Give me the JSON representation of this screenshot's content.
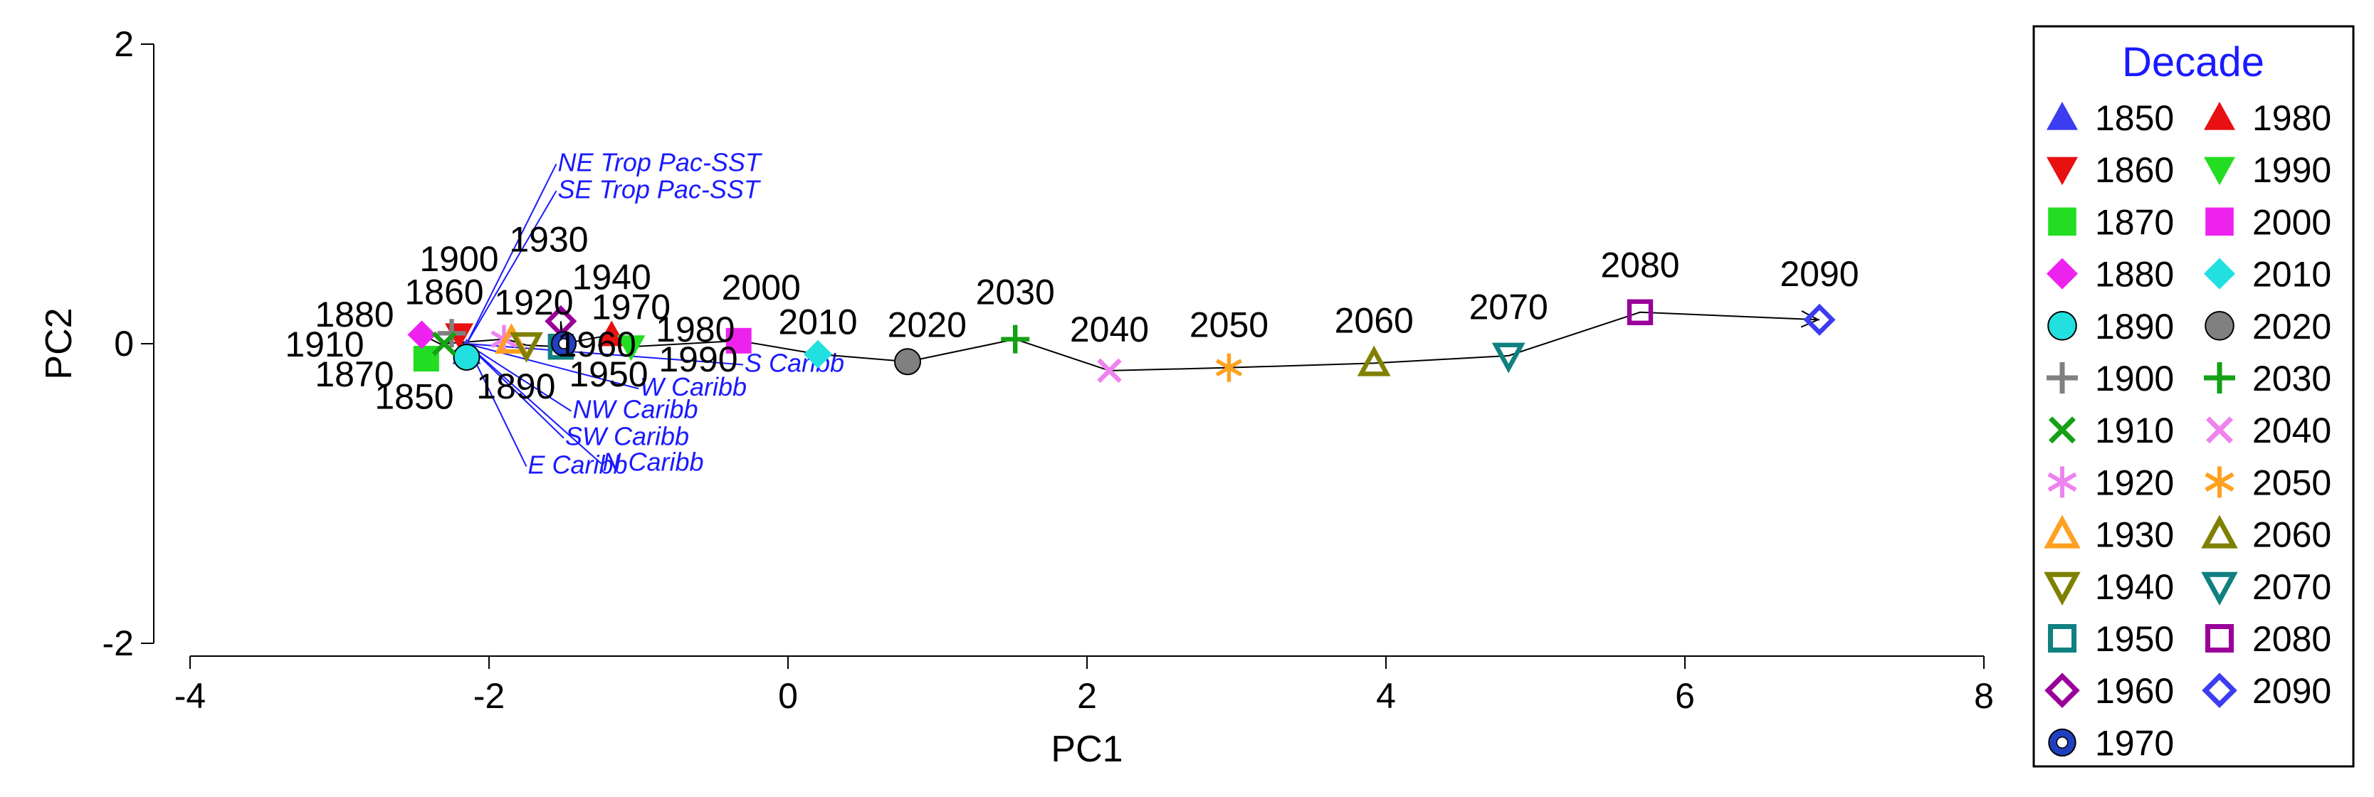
{
  "chart_data": {
    "type": "scatter",
    "title": "",
    "xlabel": "PC1",
    "ylabel": "PC2",
    "xlim": [
      -4,
      8
    ],
    "ylim": [
      -2,
      2
    ],
    "xticks": [
      "-4",
      "-2",
      "0",
      "2",
      "4",
      "6",
      "8"
    ],
    "yticks": [
      "-2",
      "0",
      "2"
    ],
    "grid": false,
    "legend_placement": "right",
    "legend_title": "Decade",
    "trajectory_order": [
      "1850",
      "1860",
      "1870",
      "1880",
      "1890",
      "1900",
      "1910",
      "1920",
      "1930",
      "1940",
      "1950",
      "1960",
      "1970",
      "1980",
      "1990",
      "2000",
      "2010",
      "2020",
      "2030",
      "2040",
      "2050",
      "2060",
      "2070",
      "2080",
      "2090"
    ],
    "series": [
      {
        "name": "1850",
        "x": -2.15,
        "y": -0.06,
        "marker": "triangle-up-filled",
        "color": "#3c3cf0"
      },
      {
        "name": "1860",
        "x": -2.2,
        "y": 0.06,
        "marker": "triangle-down-filled",
        "color": "#e81010"
      },
      {
        "name": "1870",
        "x": -2.42,
        "y": -0.1,
        "marker": "square-filled",
        "color": "#22dd22"
      },
      {
        "name": "1880",
        "x": -2.45,
        "y": 0.06,
        "marker": "diamond-filled",
        "color": "#ee22ee"
      },
      {
        "name": "1890",
        "x": -2.15,
        "y": -0.09,
        "marker": "circle-filled",
        "color": "#22e0e0"
      },
      {
        "name": "1900",
        "x": -2.25,
        "y": 0.07,
        "marker": "plus",
        "color": "#808080"
      },
      {
        "name": "1910",
        "x": -2.3,
        "y": 0.0,
        "marker": "cross",
        "color": "#16a016"
      },
      {
        "name": "1920",
        "x": -1.9,
        "y": 0.03,
        "marker": "asterisk",
        "color": "#ee82ee"
      },
      {
        "name": "1930",
        "x": -1.85,
        "y": 0.02,
        "marker": "triangle-up-open",
        "color": "#ffa020"
      },
      {
        "name": "1940",
        "x": -1.75,
        "y": -0.01,
        "marker": "triangle-down-open",
        "color": "#808000"
      },
      {
        "name": "1950",
        "x": -1.52,
        "y": -0.02,
        "marker": "square-open",
        "color": "#108080"
      },
      {
        "name": "1960",
        "x": -1.52,
        "y": 0.15,
        "marker": "diamond-open",
        "color": "#990099"
      },
      {
        "name": "1970",
        "x": -1.5,
        "y": 0.0,
        "marker": "circle-ring",
        "color": "#2040c0"
      },
      {
        "name": "1980",
        "x": -1.18,
        "y": 0.06,
        "marker": "triangle-up-filled",
        "color": "#e81010"
      },
      {
        "name": "1990",
        "x": -1.05,
        "y": -0.02,
        "marker": "triangle-down-filled",
        "color": "#22dd22"
      },
      {
        "name": "2000",
        "x": -0.33,
        "y": 0.02,
        "marker": "square-filled",
        "color": "#ee22ee"
      },
      {
        "name": "2010",
        "x": 0.2,
        "y": -0.07,
        "marker": "diamond-filled",
        "color": "#22e0e0"
      },
      {
        "name": "2020",
        "x": 0.8,
        "y": -0.12,
        "marker": "circle-filled",
        "color": "#808080"
      },
      {
        "name": "2030",
        "x": 1.52,
        "y": 0.03,
        "marker": "plus",
        "color": "#16a016"
      },
      {
        "name": "2040",
        "x": 2.15,
        "y": -0.18,
        "marker": "cross",
        "color": "#ee82ee"
      },
      {
        "name": "2050",
        "x": 2.95,
        "y": -0.16,
        "marker": "asterisk",
        "color": "#ffa020"
      },
      {
        "name": "2060",
        "x": 3.92,
        "y": -0.13,
        "marker": "triangle-up-open",
        "color": "#808000"
      },
      {
        "name": "2070",
        "x": 4.82,
        "y": -0.08,
        "marker": "triangle-down-open",
        "color": "#108080"
      },
      {
        "name": "2080",
        "x": 5.7,
        "y": 0.21,
        "marker": "square-open",
        "color": "#990099"
      },
      {
        "name": "2090",
        "x": 6.9,
        "y": 0.16,
        "marker": "diamond-open",
        "color": "#3c3cf0"
      }
    ],
    "point_labels": [
      {
        "text": "1850",
        "x": -2.5,
        "y": -0.35
      },
      {
        "text": "1860",
        "x": -2.3,
        "y": 0.35
      },
      {
        "text": "1870",
        "x": -2.9,
        "y": -0.2
      },
      {
        "text": "1880",
        "x": -2.9,
        "y": 0.2
      },
      {
        "text": "1890",
        "x": -1.82,
        "y": -0.28
      },
      {
        "text": "1900",
        "x": -2.2,
        "y": 0.57
      },
      {
        "text": "1910",
        "x": -3.1,
        "y": 0.0
      },
      {
        "text": "1920",
        "x": -1.7,
        "y": 0.28
      },
      {
        "text": "1930",
        "x": -1.6,
        "y": 0.7
      },
      {
        "text": "1940",
        "x": -1.18,
        "y": 0.45
      },
      {
        "text": "1950",
        "x": -1.2,
        "y": -0.2
      },
      {
        "text": "1960",
        "x": -1.28,
        "y": 0.0
      },
      {
        "text": "1970",
        "x": -1.05,
        "y": 0.25
      },
      {
        "text": "1980",
        "x": -0.62,
        "y": 0.1
      },
      {
        "text": "1990",
        "x": -0.6,
        "y": -0.1
      },
      {
        "text": "2000",
        "x": -0.18,
        "y": 0.38
      },
      {
        "text": "2010",
        "x": 0.2,
        "y": 0.15
      },
      {
        "text": "2020",
        "x": 0.93,
        "y": 0.13
      },
      {
        "text": "2030",
        "x": 1.52,
        "y": 0.35
      },
      {
        "text": "2040",
        "x": 2.15,
        "y": 0.1
      },
      {
        "text": "2050",
        "x": 2.95,
        "y": 0.13
      },
      {
        "text": "2060",
        "x": 3.92,
        "y": 0.16
      },
      {
        "text": "2070",
        "x": 4.82,
        "y": 0.25
      },
      {
        "text": "2080",
        "x": 5.7,
        "y": 0.53
      },
      {
        "text": "2090",
        "x": 6.9,
        "y": 0.47
      }
    ],
    "vector_origin": {
      "x": -2.15,
      "y": 0.0
    },
    "vectors": [
      {
        "name": "NE Trop Pac-SST",
        "x": -1.55,
        "y": 1.2
      },
      {
        "name": "SE Trop Pac-SST",
        "x": -1.55,
        "y": 1.02
      },
      {
        "name": "S Caribb",
        "x": -0.3,
        "y": -0.14
      },
      {
        "name": "W Caribb",
        "x": -1.0,
        "y": -0.3
      },
      {
        "name": "NW Caribb",
        "x": -1.45,
        "y": -0.45
      },
      {
        "name": "SW Caribb",
        "x": -1.5,
        "y": -0.63
      },
      {
        "name": "E Caribb",
        "x": -1.75,
        "y": -0.82
      },
      {
        "name": "N Caribb",
        "x": -1.25,
        "y": -0.8
      }
    ]
  }
}
